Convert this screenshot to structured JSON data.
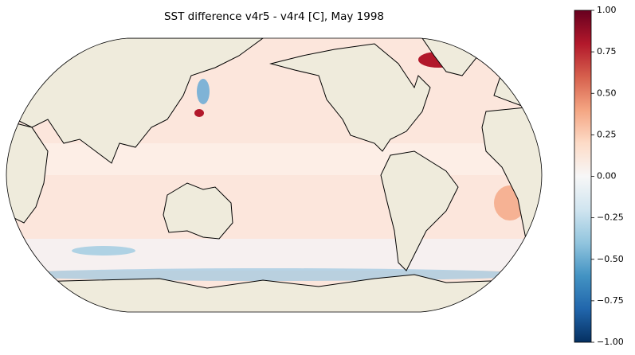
{
  "title": "SST difference v4r5 - v4r4 [C], May 1998",
  "colorbar": {
    "lim": [
      -1,
      1
    ],
    "ticks": [
      {
        "value": 1,
        "label": "1.00"
      },
      {
        "value": 0.75,
        "label": "0.75"
      },
      {
        "value": 0.5,
        "label": "0.50"
      },
      {
        "value": 0.25,
        "label": "0.25"
      },
      {
        "value": 0,
        "label": "0.00"
      },
      {
        "value": -0.25,
        "label": "−0.25"
      },
      {
        "value": -0.5,
        "label": "−0.50"
      },
      {
        "value": -0.75,
        "label": "−0.75"
      },
      {
        "value": -1,
        "label": "−1.00"
      }
    ],
    "colors": [
      "#053061",
      "#2166ac",
      "#4393c3",
      "#92c5de",
      "#d1e5f0",
      "#f7f7f7",
      "#fddbc7",
      "#f4a582",
      "#d6604d",
      "#b2182b",
      "#67001f"
    ]
  }
}
